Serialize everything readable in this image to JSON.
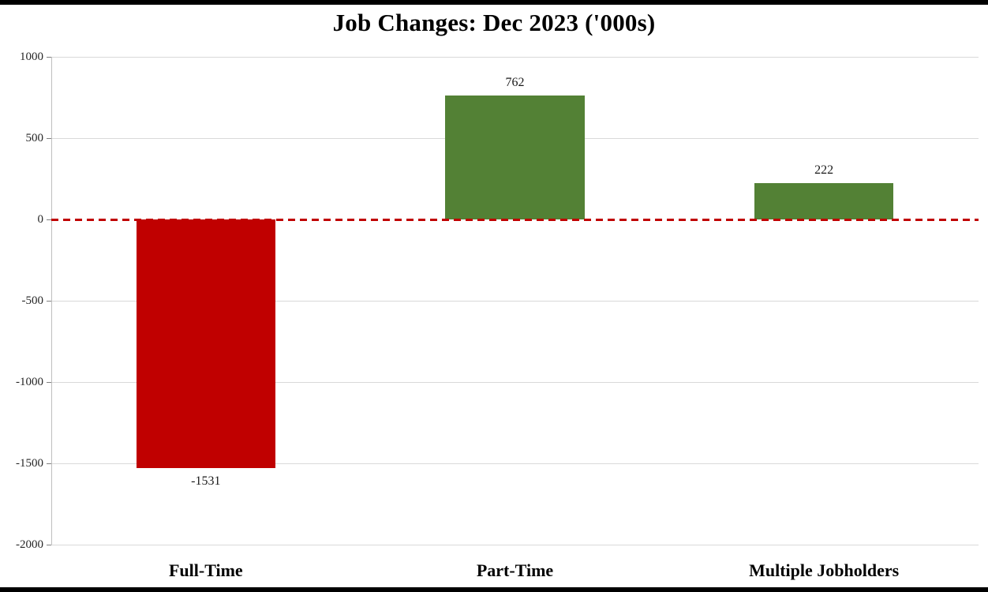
{
  "page": {
    "background": "#ffffff",
    "border_color": "#000000"
  },
  "chart_data": {
    "type": "bar",
    "title": "Job Changes: Dec 2023 ('000s)",
    "categories": [
      "Full-Time",
      "Part-Time",
      "Multiple Jobholders"
    ],
    "values": [
      -1531,
      762,
      222
    ],
    "value_labels": [
      "-1531",
      "762",
      "222"
    ],
    "ylim": [
      -2000,
      1000
    ],
    "yticks": [
      1000,
      500,
      0,
      -500,
      -1000,
      -1500,
      -2000
    ],
    "ytick_labels": [
      "1000",
      "500",
      "0",
      "-500",
      "-1000",
      "-1500",
      "-2000"
    ],
    "xlabel": "",
    "ylabel": "",
    "grid": "horizontal",
    "legend": "none",
    "zero_line": {
      "color": "#c00000",
      "style": "dashed"
    },
    "positive_color": "#538135",
    "negative_color": "#c00000",
    "bar_width_frac": 0.45
  }
}
